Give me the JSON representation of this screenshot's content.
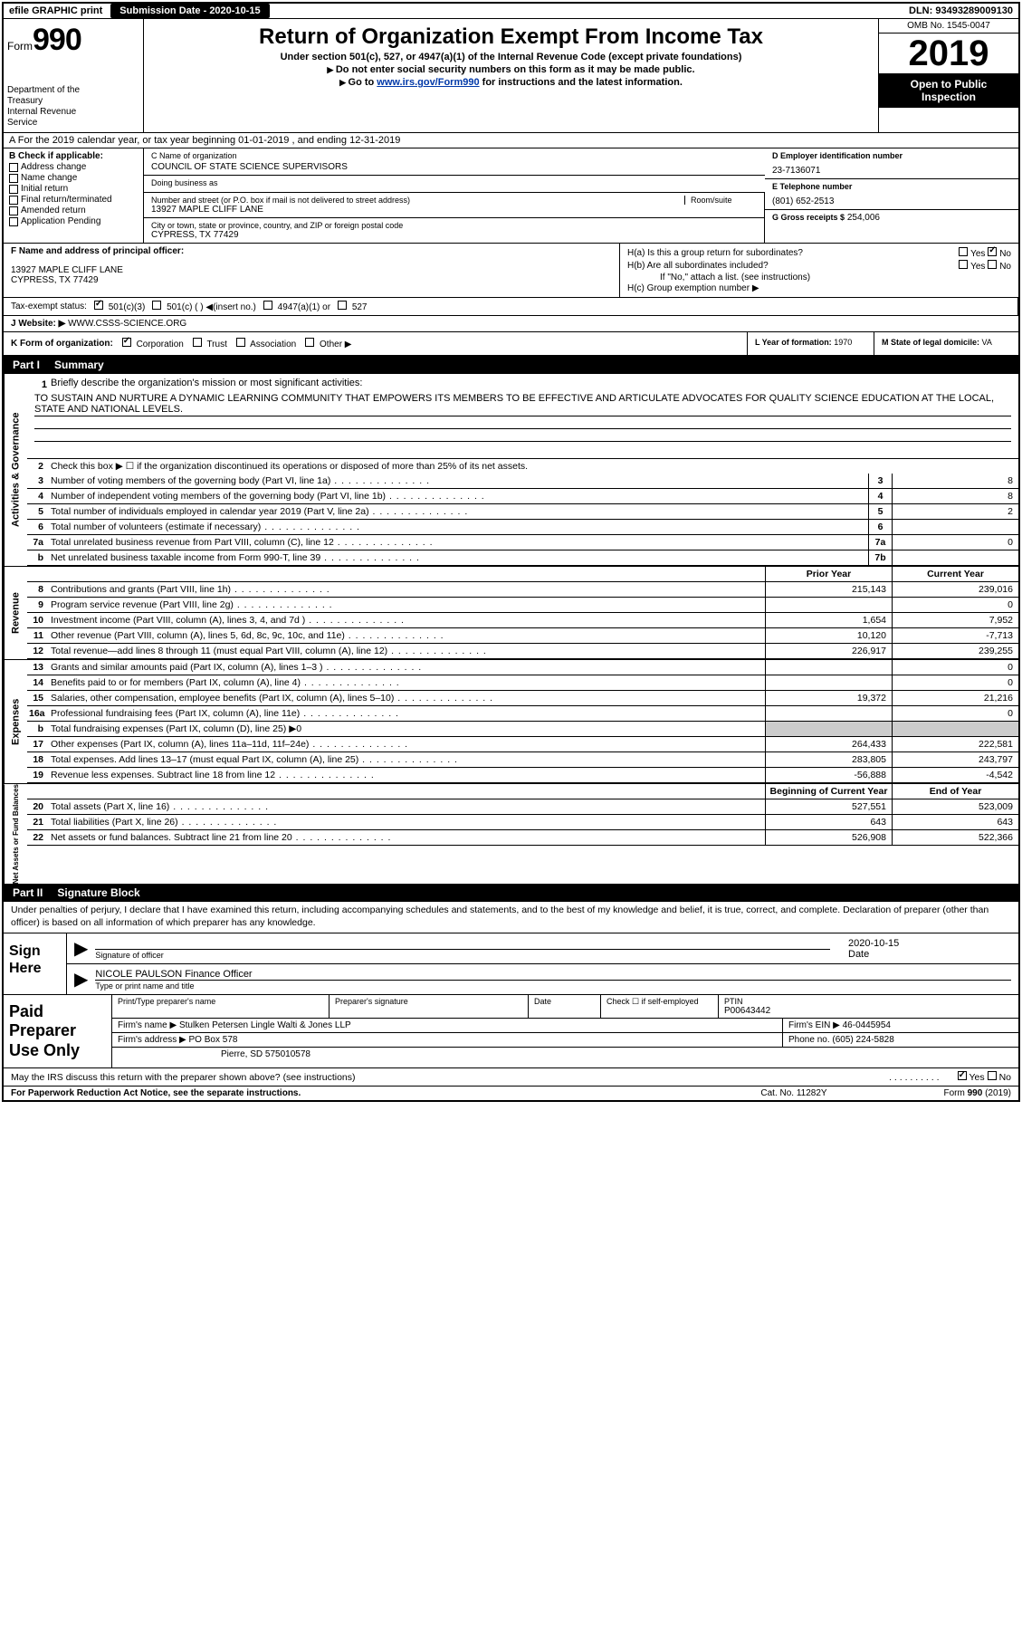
{
  "topbar": {
    "efile": "efile GRAPHIC print",
    "submission": "Submission Date - 2020-10-15",
    "dln": "DLN: 93493289009130"
  },
  "header": {
    "form_label": "Form",
    "form_number": "990",
    "dept": "Department of the Treasury\nInternal Revenue Service",
    "title": "Return of Organization Exempt From Income Tax",
    "subtitle": "Under section 501(c), 527, or 4947(a)(1) of the Internal Revenue Code (except private foundations)",
    "inst1": "Do not enter social security numbers on this form as it may be made public.",
    "inst2_pre": "Go to ",
    "inst2_link": "www.irs.gov/Form990",
    "inst2_post": " for instructions and the latest information.",
    "omb": "OMB No. 1545-0047",
    "year": "2019",
    "open": "Open to Public Inspection"
  },
  "tax_year": "A For the 2019 calendar year, or tax year beginning 01-01-2019    , and ending 12-31-2019",
  "box_b": {
    "header": "B Check if applicable:",
    "items": [
      "Address change",
      "Name change",
      "Initial return",
      "Final return/terminated",
      "Amended return",
      "Application Pending"
    ]
  },
  "box_c": {
    "name_label": "C Name of organization",
    "name": "COUNCIL OF STATE SCIENCE SUPERVISORS",
    "dba_label": "Doing business as",
    "dba": "",
    "addr_label": "Number and street (or P.O. box if mail is not delivered to street address)",
    "room_label": "Room/suite",
    "addr": "13927 MAPLE CLIFF LANE",
    "city_label": "City or town, state or province, country, and ZIP or foreign postal code",
    "city": "CYPRESS, TX  77429"
  },
  "box_d": {
    "ein_label": "D Employer identification number",
    "ein": "23-7136071",
    "phone_label": "E Telephone number",
    "phone": "(801) 652-2513",
    "gross_label": "G Gross receipts $",
    "gross": "254,006"
  },
  "box_f": {
    "label": "F  Name and address of principal officer:",
    "addr": "13927 MAPLE CLIFF LANE\nCYPRESS, TX  77429"
  },
  "box_h": {
    "a": "H(a)  Is this a group return for subordinates?",
    "b": "H(b)  Are all subordinates included?",
    "b_note": "If \"No,\" attach a list. (see instructions)",
    "c": "H(c)  Group exemption number ▶"
  },
  "tax_status": {
    "label": "Tax-exempt status:",
    "opts": [
      "501(c)(3)",
      "501(c) (  ) ◀(insert no.)",
      "4947(a)(1) or",
      "527"
    ]
  },
  "website": {
    "label": "J    Website: ▶",
    "val": "WWW.CSSS-SCIENCE.ORG"
  },
  "box_k": {
    "label": "K Form of organization:",
    "opts": [
      "Corporation",
      "Trust",
      "Association",
      "Other ▶"
    ],
    "l_label": "L Year of formation:",
    "l_val": "1970",
    "m_label": "M State of legal domicile:",
    "m_val": "VA"
  },
  "part1": {
    "num": "Part I",
    "title": "Summary"
  },
  "mission": {
    "label": "Briefly describe the organization's mission or most significant activities:",
    "text": "TO SUSTAIN AND NURTURE A DYNAMIC LEARNING COMMUNITY THAT EMPOWERS ITS MEMBERS TO BE EFFECTIVE AND ARTICULATE ADVOCATES FOR QUALITY SCIENCE EDUCATION AT THE LOCAL, STATE AND NATIONAL LEVELS."
  },
  "gov_lines": [
    {
      "n": "2",
      "t": "Check this box ▶ ☐  if the organization discontinued its operations or disposed of more than 25% of its net assets."
    },
    {
      "n": "3",
      "t": "Number of voting members of the governing body (Part VI, line 1a)",
      "box": "3",
      "v": "8"
    },
    {
      "n": "4",
      "t": "Number of independent voting members of the governing body (Part VI, line 1b)",
      "box": "4",
      "v": "8"
    },
    {
      "n": "5",
      "t": "Total number of individuals employed in calendar year 2019 (Part V, line 2a)",
      "box": "5",
      "v": "2"
    },
    {
      "n": "6",
      "t": "Total number of volunteers (estimate if necessary)",
      "box": "6",
      "v": ""
    },
    {
      "n": "7a",
      "t": "Total unrelated business revenue from Part VIII, column (C), line 12",
      "box": "7a",
      "v": "0"
    },
    {
      "n": "b",
      "t": "Net unrelated business taxable income from Form 990-T, line 39",
      "box": "7b",
      "v": ""
    }
  ],
  "col_headers": {
    "prior": "Prior Year",
    "current": "Current Year"
  },
  "revenue": [
    {
      "n": "8",
      "t": "Contributions and grants (Part VIII, line 1h)",
      "p": "215,143",
      "c": "239,016"
    },
    {
      "n": "9",
      "t": "Program service revenue (Part VIII, line 2g)",
      "p": "",
      "c": "0"
    },
    {
      "n": "10",
      "t": "Investment income (Part VIII, column (A), lines 3, 4, and 7d )",
      "p": "1,654",
      "c": "7,952"
    },
    {
      "n": "11",
      "t": "Other revenue (Part VIII, column (A), lines 5, 6d, 8c, 9c, 10c, and 11e)",
      "p": "10,120",
      "c": "-7,713"
    },
    {
      "n": "12",
      "t": "Total revenue—add lines 8 through 11 (must equal Part VIII, column (A), line 12)",
      "p": "226,917",
      "c": "239,255"
    }
  ],
  "expenses": [
    {
      "n": "13",
      "t": "Grants and similar amounts paid (Part IX, column (A), lines 1–3 )",
      "p": "",
      "c": "0"
    },
    {
      "n": "14",
      "t": "Benefits paid to or for members (Part IX, column (A), line 4)",
      "p": "",
      "c": "0"
    },
    {
      "n": "15",
      "t": "Salaries, other compensation, employee benefits (Part IX, column (A), lines 5–10)",
      "p": "19,372",
      "c": "21,216"
    },
    {
      "n": "16a",
      "t": "Professional fundraising fees (Part IX, column (A), line 11e)",
      "p": "",
      "c": "0"
    },
    {
      "n": "b",
      "t": "Total fundraising expenses (Part IX, column (D), line 25) ▶0",
      "shade": true
    },
    {
      "n": "17",
      "t": "Other expenses (Part IX, column (A), lines 11a–11d, 11f–24e)",
      "p": "264,433",
      "c": "222,581"
    },
    {
      "n": "18",
      "t": "Total expenses. Add lines 13–17 (must equal Part IX, column (A), line 25)",
      "p": "283,805",
      "c": "243,797"
    },
    {
      "n": "19",
      "t": "Revenue less expenses. Subtract line 18 from line 12",
      "p": "-56,888",
      "c": "-4,542"
    }
  ],
  "net_headers": {
    "begin": "Beginning of Current Year",
    "end": "End of Year"
  },
  "netassets": [
    {
      "n": "20",
      "t": "Total assets (Part X, line 16)",
      "p": "527,551",
      "c": "523,009"
    },
    {
      "n": "21",
      "t": "Total liabilities (Part X, line 26)",
      "p": "643",
      "c": "643"
    },
    {
      "n": "22",
      "t": "Net assets or fund balances. Subtract line 21 from line 20",
      "p": "526,908",
      "c": "522,366"
    }
  ],
  "part2": {
    "num": "Part II",
    "title": "Signature Block"
  },
  "penalties": "Under penalties of perjury, I declare that I have examined this return, including accompanying schedules and statements, and to the best of my knowledge and belief, it is true, correct, and complete. Declaration of preparer (other than officer) is based on all information of which preparer has any knowledge.",
  "sign": {
    "label": "Sign Here",
    "sig_label": "Signature of officer",
    "date": "2020-10-15",
    "date_label": "Date",
    "name": "NICOLE PAULSON Finance Officer",
    "name_label": "Type or print name and title"
  },
  "prep": {
    "label": "Paid Preparer Use Only",
    "r1": {
      "c1": "Print/Type preparer's name",
      "c2": "Preparer's signature",
      "c3": "Date",
      "c4_pre": "Check ☐ if self-employed",
      "c5_label": "PTIN",
      "c5": "P00643442"
    },
    "r2": {
      "label": "Firm's name     ▶",
      "val": "Stulken Petersen Lingle Walti & Jones LLP",
      "ein_label": "Firm's EIN ▶",
      "ein": "46-0445954"
    },
    "r3": {
      "label": "Firm's address ▶",
      "val": "PO Box 578",
      "phone_label": "Phone no.",
      "phone": "(605) 224-5828"
    },
    "r4": {
      "val": "Pierre, SD  575010578"
    }
  },
  "discuss": "May the IRS discuss this return with the preparer shown above? (see instructions)",
  "footer": {
    "l": "For Paperwork Reduction Act Notice, see the separate instructions.",
    "c": "Cat. No. 11282Y",
    "r": "Form 990 (2019)"
  },
  "vtabs": {
    "gov": "Activities & Governance",
    "rev": "Revenue",
    "exp": "Expenses",
    "net": "Net Assets or Fund Balances"
  }
}
